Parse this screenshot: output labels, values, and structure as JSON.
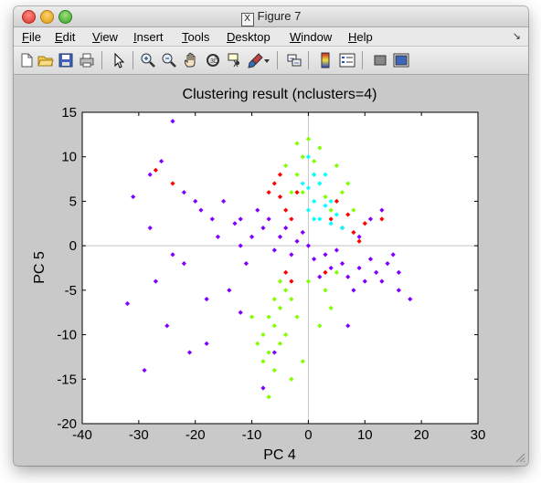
{
  "window": {
    "title": "Figure 7",
    "x_logo": "X"
  },
  "menu": [
    {
      "label": "File",
      "u": "F",
      "rest": "ile"
    },
    {
      "label": "Edit",
      "u": "E",
      "rest": "dit"
    },
    {
      "label": "View",
      "u": "V",
      "rest": "iew"
    },
    {
      "label": "Insert",
      "u": "I",
      "rest": "nsert"
    },
    {
      "label": "Tools",
      "u": "T",
      "rest": "ools"
    },
    {
      "label": "Desktop",
      "u": "D",
      "rest": "esktop"
    },
    {
      "label": "Window",
      "u": "W",
      "rest": "indow"
    },
    {
      "label": "Help",
      "u": "H",
      "rest": "elp"
    }
  ],
  "toolbar_icons": [
    "new-figure-icon",
    "open-file-icon",
    "save-icon",
    "print-icon",
    "edit-plot-arrow-icon",
    "zoom-in-icon",
    "zoom-out-icon",
    "pan-hand-icon",
    "rotate-3d-icon",
    "data-cursor-icon",
    "brush-icon",
    "brush-dropdown-icon",
    "link-plot-icon",
    "insert-colorbar-icon",
    "insert-legend-icon",
    "hide-plot-tools-icon",
    "show-plot-tools-icon"
  ],
  "chart_data": {
    "type": "scatter",
    "title": "Clustering result (nclusters=4)",
    "xlabel": "PC 4",
    "ylabel": "PC 5",
    "xlim": [
      -40,
      30
    ],
    "ylim": [
      -20,
      15
    ],
    "xticks": [
      -40,
      -30,
      -20,
      -10,
      0,
      10,
      20,
      30
    ],
    "yticks": [
      -20,
      -15,
      -10,
      -5,
      0,
      5,
      10,
      15
    ],
    "reference_lines": {
      "x": 0,
      "y": 0
    },
    "grid": false,
    "legend": "none",
    "series": [
      {
        "color": "#7f00ff",
        "marker": "diamond",
        "points": [
          [
            -24,
            14
          ],
          [
            -26,
            9.5
          ],
          [
            -28,
            8
          ],
          [
            -31,
            5.5
          ],
          [
            -22,
            6
          ],
          [
            -19,
            4
          ],
          [
            -15,
            5
          ],
          [
            -12,
            3
          ],
          [
            -8,
            2
          ],
          [
            -5,
            1
          ],
          [
            -2,
            0.5
          ],
          [
            0,
            0
          ],
          [
            3,
            -1
          ],
          [
            6,
            -2
          ],
          [
            9,
            -2.5
          ],
          [
            12,
            -3
          ],
          [
            14,
            -2
          ],
          [
            16,
            -3
          ],
          [
            15,
            -1
          ],
          [
            10,
            -4
          ],
          [
            7,
            -3.5
          ],
          [
            4,
            -2.5
          ],
          [
            -16,
            1
          ],
          [
            -13,
            2.5
          ],
          [
            -10,
            1
          ],
          [
            -7,
            3
          ],
          [
            -20,
            5
          ],
          [
            -3,
            -1
          ],
          [
            1,
            -1.5
          ],
          [
            5,
            -0.5
          ],
          [
            -32,
            -6.5
          ],
          [
            -25,
            -9
          ],
          [
            -21,
            -12
          ],
          [
            -18,
            -11
          ],
          [
            -29,
            -14
          ],
          [
            -14,
            -5
          ],
          [
            -12,
            -7.5
          ],
          [
            -22,
            -2
          ],
          [
            -6,
            -0.5
          ],
          [
            2,
            -3.5
          ],
          [
            8,
            -5
          ],
          [
            11,
            -1.5
          ],
          [
            13,
            -4
          ],
          [
            16,
            -5
          ],
          [
            -17,
            3
          ],
          [
            -9,
            4
          ],
          [
            -4,
            2
          ],
          [
            -1,
            1.5
          ],
          [
            -11,
            -2
          ],
          [
            -27,
            -4
          ],
          [
            -18,
            -6
          ],
          [
            -24,
            -1
          ],
          [
            -28,
            2
          ],
          [
            18,
            -6
          ],
          [
            11,
            3
          ],
          [
            -8,
            -16
          ],
          [
            7,
            -9
          ],
          [
            13,
            4
          ],
          [
            9,
            1
          ],
          [
            -6,
            -12
          ],
          [
            -12,
            0
          ]
        ]
      },
      {
        "color": "#80ff00",
        "marker": "diamond",
        "points": [
          [
            0,
            12
          ],
          [
            -1,
            10
          ],
          [
            1,
            9.5
          ],
          [
            -2,
            8
          ],
          [
            2,
            7
          ],
          [
            -3,
            6
          ],
          [
            3,
            5.5
          ],
          [
            4,
            4
          ],
          [
            -4,
            9
          ],
          [
            5,
            9
          ],
          [
            6,
            6
          ],
          [
            -1,
            6
          ],
          [
            1,
            8
          ],
          [
            2,
            11
          ],
          [
            -2,
            11.5
          ],
          [
            -5,
            -4
          ],
          [
            -6,
            -6
          ],
          [
            -7,
            -8
          ],
          [
            -8,
            -10
          ],
          [
            -7,
            -12
          ],
          [
            -6,
            -9
          ],
          [
            -5,
            -7
          ],
          [
            -4,
            -5
          ],
          [
            -3,
            -6
          ],
          [
            -2,
            -8
          ],
          [
            -6,
            -14
          ],
          [
            -7,
            -17
          ],
          [
            -5,
            -11
          ],
          [
            -8,
            -13
          ],
          [
            -9,
            -11
          ],
          [
            -4,
            -10
          ],
          [
            -1,
            -13
          ],
          [
            2,
            -9
          ],
          [
            4,
            -7
          ],
          [
            -3,
            -15
          ],
          [
            3,
            -5
          ],
          [
            5,
            -3
          ],
          [
            7,
            7
          ],
          [
            8,
            4
          ],
          [
            -10,
            -8
          ],
          [
            0,
            -4
          ]
        ]
      },
      {
        "color": "#ff0000",
        "marker": "diamond",
        "points": [
          [
            -6,
            7
          ],
          [
            -5,
            5.5
          ],
          [
            -4,
            4
          ],
          [
            -3,
            3
          ],
          [
            -7,
            6
          ],
          [
            -5,
            8
          ],
          [
            -2,
            6
          ],
          [
            4,
            3
          ],
          [
            6,
            2
          ],
          [
            7,
            3.5
          ],
          [
            8,
            1.5
          ],
          [
            5,
            5
          ],
          [
            -27,
            8.5
          ],
          [
            -24,
            7
          ],
          [
            -4,
            -3
          ],
          [
            -3,
            -4
          ],
          [
            9,
            0.5
          ],
          [
            3,
            -3
          ],
          [
            10,
            2.5
          ],
          [
            13,
            3
          ]
        ]
      },
      {
        "color": "#00ffff",
        "marker": "diamond",
        "points": [
          [
            0,
            10
          ],
          [
            1,
            8
          ],
          [
            2,
            7
          ],
          [
            0,
            6.5
          ],
          [
            1,
            5
          ],
          [
            3,
            4.5
          ],
          [
            2,
            3
          ],
          [
            4,
            2.5
          ],
          [
            5,
            3.5
          ],
          [
            0,
            4
          ],
          [
            -1,
            7
          ],
          [
            3,
            8
          ],
          [
            4,
            5
          ],
          [
            6,
            2
          ],
          [
            1,
            3
          ]
        ]
      }
    ]
  }
}
